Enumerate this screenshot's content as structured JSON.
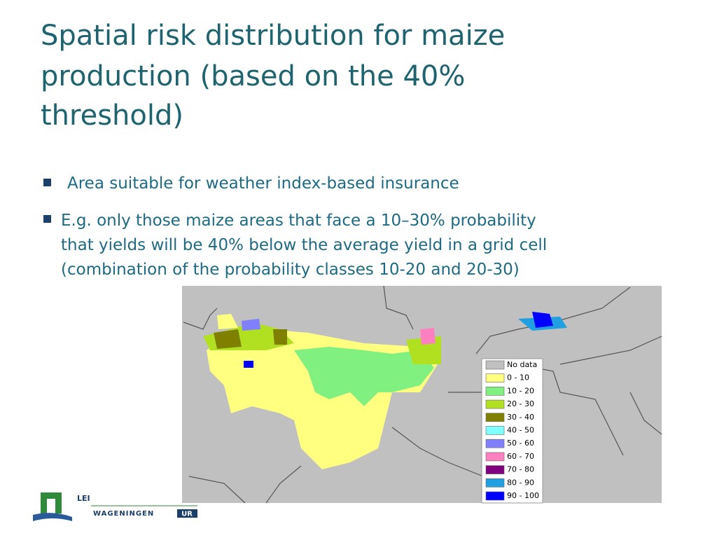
{
  "title": [
    "Spatial risk distribution for maize",
    "production (based on the 40%",
    "threshold)"
  ],
  "bullets": [
    [
      "Area suitable for weather index-based insurance"
    ],
    [
      "E.g. only those maize areas that face a 10–30% probability",
      "that yields will be 40% below the average yield in a grid cell",
      "(combination of the probability classes 10-20 and 20-30)"
    ]
  ],
  "map": {
    "legend": [
      {
        "label": "No data",
        "color": "#c0c0c0"
      },
      {
        "label": "0 - 10",
        "color": "#ffff80"
      },
      {
        "label": "10 - 20",
        "color": "#80f080"
      },
      {
        "label": "20 - 30",
        "color": "#b0e020"
      },
      {
        "label": "30 - 40",
        "color": "#808000"
      },
      {
        "label": "40 - 50",
        "color": "#80ffff"
      },
      {
        "label": "50 - 60",
        "color": "#8080ff"
      },
      {
        "label": "60 - 70",
        "color": "#ff80c0"
      },
      {
        "label": "70 - 80",
        "color": "#800080"
      },
      {
        "label": "80 - 90",
        "color": "#20a0e0"
      },
      {
        "label": "90 - 100",
        "color": "#0000ff"
      }
    ]
  },
  "logo": {
    "top": "LEI",
    "bottom": "WAGENINGEN",
    "badge": "UR"
  }
}
